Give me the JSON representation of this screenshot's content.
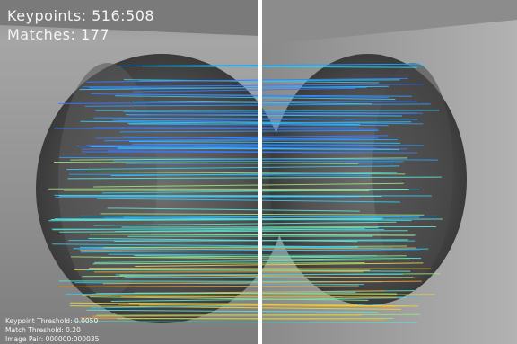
{
  "overlay": {
    "keypoints": "Keypoints: 516:508",
    "matches": "Matches: 177",
    "keypoint_threshold": "Keypoint Threshold: 0.0050",
    "match_threshold": "Match Threshold: 0.20",
    "image_pair": "Image Pair: 000000:000035"
  }
}
